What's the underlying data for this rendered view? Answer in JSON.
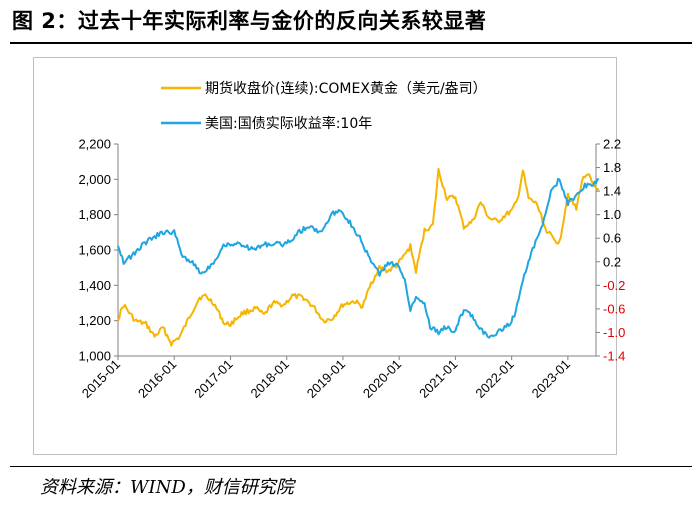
{
  "figure": {
    "title": "图 2：过去十年实际利率与金价的反向关系较显著",
    "source": "资料来源：WIND，财信研究院"
  },
  "colors": {
    "gold": "#F5B500",
    "rate": "#1FA5E0",
    "right_axis_negative": "#E00000",
    "axis": "#808080"
  },
  "chart_data": {
    "type": "line",
    "title": "",
    "legend": [
      {
        "key": "gold",
        "label": "期货收盘价(连续):COMEX黄金（美元/盎司）"
      },
      {
        "key": "rate",
        "label": "美国:国债实际收益率:10年"
      }
    ],
    "legend_position": "top-center",
    "x_tick_labels": [
      "2015-01",
      "2016-01",
      "2017-01",
      "2018-01",
      "2019-01",
      "2020-01",
      "2021-01",
      "2022-01",
      "2023-01"
    ],
    "x_range": [
      "2015-01",
      "2023-07"
    ],
    "y_left": {
      "range": [
        1000,
        2200
      ],
      "tick_labels": [
        "1,000",
        "1,200",
        "1,400",
        "1,600",
        "1,800",
        "2,000",
        "2,200"
      ]
    },
    "y_right": {
      "range": [
        -1.4,
        2.2
      ],
      "tick_labels": [
        "-1.4",
        "-1.0",
        "-0.6",
        "-0.2",
        "0.2",
        "0.6",
        "1.0",
        "1.4",
        "1.8",
        "2.2"
      ]
    },
    "series": [
      {
        "name": "期货收盘价(连续):COMEX黄金（美元/盎司）",
        "axis": "left",
        "x": [
          2015.0,
          2015.1,
          2015.3,
          2015.5,
          2015.65,
          2015.8,
          2015.95,
          2016.1,
          2016.3,
          2016.45,
          2016.55,
          2016.7,
          2016.9,
          2017.0,
          2017.2,
          2017.45,
          2017.6,
          2017.75,
          2017.95,
          2018.1,
          2018.3,
          2018.5,
          2018.65,
          2018.8,
          2019.0,
          2019.2,
          2019.35,
          2019.5,
          2019.65,
          2019.8,
          2019.95,
          2020.05,
          2020.2,
          2020.3,
          2020.45,
          2020.6,
          2020.7,
          2020.85,
          2021.0,
          2021.15,
          2021.3,
          2021.45,
          2021.6,
          2021.75,
          2021.9,
          2022.0,
          2022.1,
          2022.2,
          2022.3,
          2022.45,
          2022.6,
          2022.75,
          2022.85,
          2023.0,
          2023.15,
          2023.25,
          2023.35,
          2023.45,
          2023.55
        ],
        "y": [
          1210,
          1290,
          1200,
          1180,
          1110,
          1160,
          1070,
          1110,
          1240,
          1330,
          1340,
          1300,
          1180,
          1180,
          1240,
          1270,
          1230,
          1300,
          1290,
          1340,
          1330,
          1270,
          1200,
          1210,
          1290,
          1310,
          1280,
          1410,
          1500,
          1480,
          1510,
          1550,
          1620,
          1480,
          1710,
          1740,
          2050,
          1890,
          1900,
          1730,
          1760,
          1870,
          1780,
          1760,
          1800,
          1820,
          1880,
          2050,
          1890,
          1860,
          1720,
          1660,
          1640,
          1920,
          1830,
          1990,
          2040,
          1960,
          1940
        ]
      },
      {
        "name": "美国:国债实际收益率:10年",
        "axis": "right",
        "x": [
          2015.0,
          2015.1,
          2015.25,
          2015.45,
          2015.6,
          2015.8,
          2016.0,
          2016.15,
          2016.3,
          2016.5,
          2016.7,
          2016.9,
          2017.0,
          2017.2,
          2017.4,
          2017.6,
          2017.8,
          2018.0,
          2018.2,
          2018.4,
          2018.6,
          2018.8,
          2018.95,
          2019.1,
          2019.3,
          2019.5,
          2019.65,
          2019.85,
          2020.0,
          2020.1,
          2020.2,
          2020.3,
          2020.45,
          2020.55,
          2020.7,
          2020.85,
          2021.0,
          2021.1,
          2021.2,
          2021.35,
          2021.5,
          2021.6,
          2021.75,
          2021.9,
          2022.0,
          2022.05,
          2022.15,
          2022.3,
          2022.45,
          2022.55,
          2022.7,
          2022.85,
          2023.0,
          2023.15,
          2023.3,
          2023.45,
          2023.55
        ],
        "y": [
          0.5,
          0.2,
          0.3,
          0.5,
          0.6,
          0.7,
          0.7,
          0.3,
          0.2,
          0.0,
          0.2,
          0.5,
          0.5,
          0.5,
          0.4,
          0.5,
          0.5,
          0.5,
          0.7,
          0.8,
          0.7,
          1.0,
          1.1,
          0.9,
          0.6,
          0.2,
          0.0,
          0.2,
          0.1,
          -0.1,
          -0.6,
          -0.4,
          -0.5,
          -0.9,
          -1.0,
          -0.9,
          -1.0,
          -0.7,
          -0.6,
          -0.8,
          -1.0,
          -1.1,
          -1.0,
          -0.9,
          -0.8,
          -0.7,
          -0.3,
          0.2,
          0.6,
          0.8,
          1.4,
          1.6,
          1.2,
          1.3,
          1.5,
          1.5,
          1.6
        ]
      }
    ]
  }
}
